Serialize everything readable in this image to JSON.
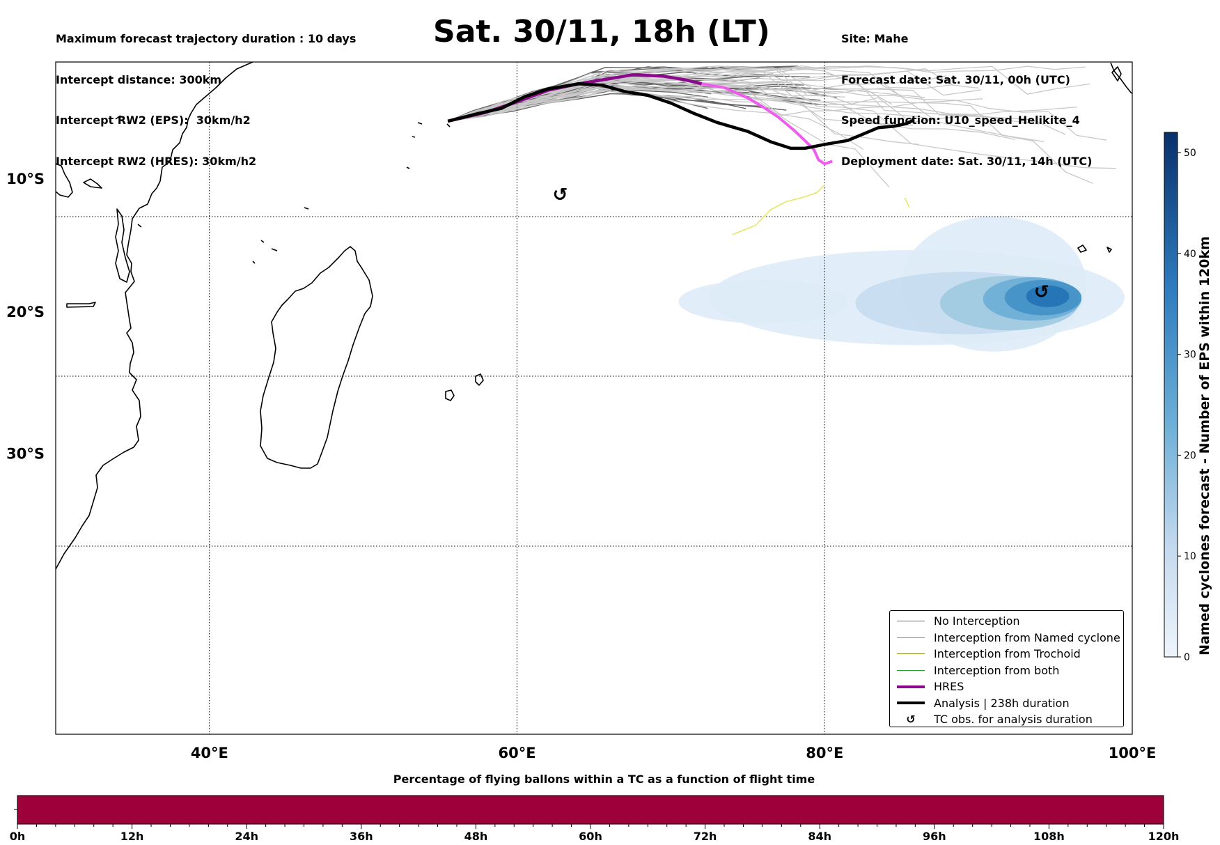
{
  "header": {
    "left_lines": [
      "Maximum forecast trajectory duration : 10 days",
      "Intercept distance: 300km",
      "Intercept RW2 (EPS):  30km/h2",
      "Intercept RW2 (HRES): 30km/h2"
    ],
    "title": "Sat. 30/11, 18h (LT)",
    "right_lines": [
      "Site: Mahe",
      "Forecast date: Sat. 30/11, 00h (UTC)",
      "Speed function: U10_speed_Helikite_4",
      "Deployment date: Sat. 30/11, 14h (UTC)"
    ]
  },
  "map": {
    "lon_range": [
      30,
      100
    ],
    "lat_range": [
      -47,
      -1
    ],
    "lon_ticks": [
      {
        "value": 40,
        "label": "40°E"
      },
      {
        "value": 60,
        "label": "60°E"
      },
      {
        "value": 80,
        "label": "80°E"
      },
      {
        "value": 100,
        "label": "100°E"
      }
    ],
    "lat_ticks": [
      {
        "value": -10,
        "label": "10°S"
      },
      {
        "value": -20,
        "label": "20°S"
      },
      {
        "value": -30,
        "label": "30°S"
      }
    ],
    "colors": {
      "no_interception": "#666666",
      "eps_far": "#c8c8c8",
      "interception_named_cyclone": "#ff6a3d",
      "interception_trochoid": "#8c8c18",
      "interception_both": "#2ca02c",
      "hres": "#8b0a8b",
      "hres_late": "#ee5cee",
      "analysis": "#000000",
      "trochoid_yellow": "#e6e664",
      "density_colors": [
        "#deebf7",
        "#c6dbef",
        "#9ecae1",
        "#6baed6",
        "#4292c6",
        "#2171b5",
        "#08519c",
        "#08306b"
      ]
    },
    "hres_track": [
      [
        55.5,
        -5.6
      ],
      [
        58,
        -4.9
      ],
      [
        60,
        -4.1
      ],
      [
        62,
        -3.2
      ],
      [
        64,
        -2.7
      ],
      [
        66,
        -2.3
      ],
      [
        67.5,
        -2
      ],
      [
        69.5,
        -2.1
      ],
      [
        71,
        -2.4
      ],
      [
        72,
        -2.7
      ],
      [
        73.5,
        -3
      ],
      [
        75,
        -3.8
      ],
      [
        76,
        -4.5
      ],
      [
        77,
        -5.3
      ],
      [
        78,
        -6.3
      ],
      [
        78.8,
        -7.2
      ],
      [
        79.3,
        -7.8
      ],
      [
        79.6,
        -8.6
      ],
      [
        80,
        -8.9
      ],
      [
        80.5,
        -8.7
      ]
    ],
    "hres_split_index": 9,
    "analysis_track": [
      [
        55.5,
        -5.6
      ],
      [
        57.5,
        -5
      ],
      [
        59,
        -4.6
      ],
      [
        60.5,
        -3.7
      ],
      [
        62,
        -3.1
      ],
      [
        64,
        -2.7
      ],
      [
        65.5,
        -2.8
      ],
      [
        67,
        -3.3
      ],
      [
        68.5,
        -3.6
      ],
      [
        70,
        -4.2
      ],
      [
        71.5,
        -5
      ],
      [
        73,
        -5.7
      ],
      [
        75,
        -6.4
      ],
      [
        76.5,
        -7.2
      ],
      [
        77.8,
        -7.7
      ],
      [
        78.7,
        -7.7
      ],
      [
        80,
        -7.4
      ],
      [
        81.5,
        -7.1
      ],
      [
        82.5,
        -6.6
      ],
      [
        83.5,
        -6.1
      ],
      [
        84.5,
        -6
      ],
      [
        85.3,
        -5.8
      ],
      [
        85.8,
        -5.5
      ]
    ],
    "yellow_track": [
      [
        74,
        -14.3
      ],
      [
        75.5,
        -13.6
      ],
      [
        76.5,
        -12.4
      ],
      [
        77.5,
        -11.8
      ],
      [
        78.5,
        -11.5
      ],
      [
        79.5,
        -11.1
      ],
      [
        80,
        -10.5
      ]
    ],
    "yellow_track_2": [
      [
        85.2,
        -11.5
      ],
      [
        85.5,
        -12.2
      ]
    ],
    "density_ellipses": [
      {
        "level": 0,
        "cx": 86,
        "cy": -19,
        "rx": 13.5,
        "ry": 3.5
      },
      {
        "level": 0,
        "cx": 91,
        "cy": -18,
        "rx": 6,
        "ry": 5
      },
      {
        "level": 0,
        "cx": 76,
        "cy": -19.3,
        "rx": 5.5,
        "ry": 1.6
      },
      {
        "level": 1,
        "cx": 89,
        "cy": -19.4,
        "rx": 7,
        "ry": 2.3
      },
      {
        "level": 2,
        "cx": 92,
        "cy": -19.4,
        "rx": 4.5,
        "ry": 2
      },
      {
        "level": 3,
        "cx": 93.5,
        "cy": -19.1,
        "rx": 3.2,
        "ry": 1.6
      },
      {
        "level": 4,
        "cx": 94.2,
        "cy": -19,
        "rx": 2.5,
        "ry": 1.3
      },
      {
        "level": 5,
        "cx": 94.5,
        "cy": -18.9,
        "rx": 1.4,
        "ry": 0.8
      }
    ],
    "tc_obs_markers": [
      [
        62.8,
        -11.3
      ],
      [
        94.1,
        -18.6
      ]
    ]
  },
  "legend": {
    "items": [
      {
        "label": "No Interception",
        "style": "thin",
        "color": "#666666"
      },
      {
        "label": "Interception from Named cyclone",
        "style": "thin",
        "color": "#ff6a3d"
      },
      {
        "label": "Interception from Trochoid",
        "style": "thin",
        "color": "#8c8c18"
      },
      {
        "label": "Interception from both",
        "style": "thin",
        "color": "#2ca02c"
      },
      {
        "label": "HRES",
        "style": "thick",
        "color": "#8b0a8b"
      },
      {
        "label": "Analysis | 238h duration",
        "style": "thick",
        "color": "#000000"
      },
      {
        "label": "TC obs. for analysis duration",
        "style": "symbol",
        "color": "#000000"
      }
    ],
    "symbol": "↺"
  },
  "colorbar": {
    "label": "Named cyclones forecast - Number of EPS within 120km",
    "ticks": [
      "0",
      "10",
      "20",
      "30",
      "40",
      "50"
    ],
    "tick_values": [
      0,
      10,
      20,
      30,
      40,
      50
    ],
    "max": 52
  },
  "bottom_bar": {
    "title": "Percentage of flying ballons within a TC as a function of flight time",
    "fill_color": "#9e003a",
    "ticks": [
      "0h",
      "12h",
      "24h",
      "36h",
      "48h",
      "60h",
      "72h",
      "84h",
      "96h",
      "108h",
      "120h"
    ]
  }
}
